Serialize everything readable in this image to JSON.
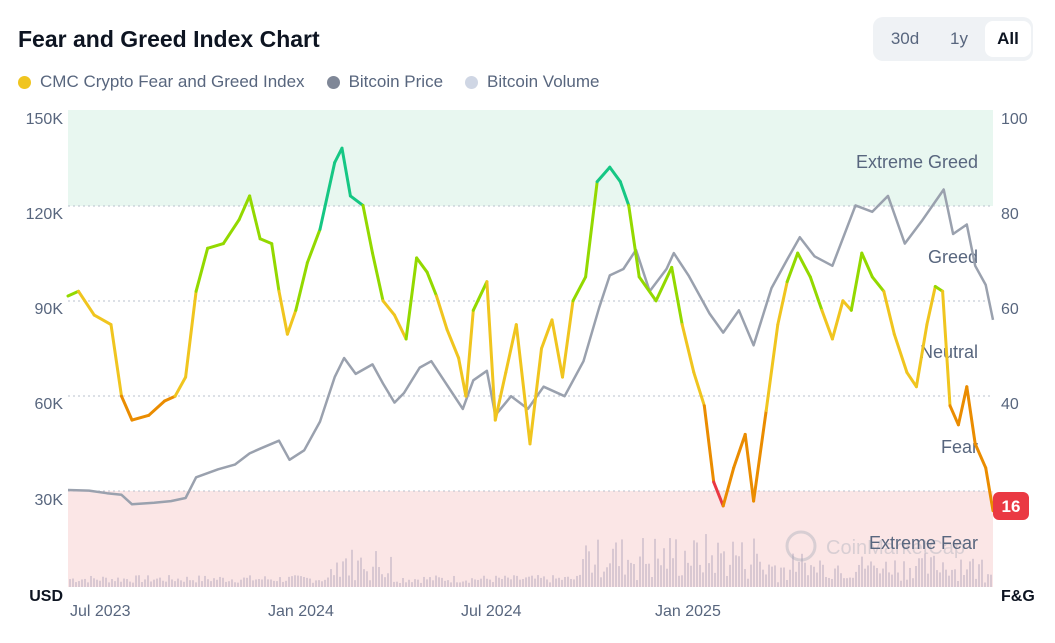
{
  "header": {
    "title": "Fear and Greed Index Chart"
  },
  "range_selector": {
    "options": [
      {
        "label": "30d",
        "active": false
      },
      {
        "label": "1y",
        "active": false
      },
      {
        "label": "All",
        "active": true
      }
    ]
  },
  "legend": [
    {
      "label": "CMC Crypto Fear and Greed Index",
      "color": "#f0c51f"
    },
    {
      "label": "Bitcoin Price",
      "color": "#7f8797"
    },
    {
      "label": "Bitcoin Volume",
      "color": "#cfd6e4"
    }
  ],
  "watermark": "CoinMarketCap",
  "current_badge": {
    "value": "16",
    "color": "#ea3943"
  },
  "chart_data": {
    "type": "line",
    "left_axis": {
      "label": "USD",
      "ticks": [
        "150K",
        "120K",
        "90K",
        "60K",
        "30K"
      ],
      "range": [
        0,
        150000
      ]
    },
    "right_axis": {
      "label": "F&G",
      "ticks": [
        "100",
        "80",
        "60",
        "40"
      ],
      "range": [
        0,
        100
      ]
    },
    "x_ticks": [
      "Jul 2023",
      "Jan 2024",
      "Jul 2024",
      "Jan 2025"
    ],
    "date_range": [
      "2023-06-25",
      "2025-11-22"
    ],
    "zones": [
      {
        "label": "Extreme Greed",
        "from": 80,
        "to": 100,
        "color": "#e8f7f0"
      },
      {
        "label": "Greed",
        "from": 60,
        "to": 80
      },
      {
        "label": "Neutral",
        "from": 40,
        "to": 60
      },
      {
        "label": "Fear",
        "from": 20,
        "to": 40
      },
      {
        "label": "Extreme Fear",
        "from": 0,
        "to": 20,
        "color": "#fbe6e6"
      }
    ],
    "series": [
      {
        "name": "CMC Crypto Fear and Greed Index",
        "axis": "right",
        "points": [
          [
            "2023-06-25",
            61
          ],
          [
            "2023-07-05",
            62
          ],
          [
            "2023-07-20",
            57
          ],
          [
            "2023-08-05",
            55
          ],
          [
            "2023-08-15",
            40
          ],
          [
            "2023-08-25",
            35
          ],
          [
            "2023-09-10",
            36
          ],
          [
            "2023-09-25",
            39
          ],
          [
            "2023-10-05",
            40
          ],
          [
            "2023-10-15",
            44
          ],
          [
            "2023-10-25",
            62
          ],
          [
            "2023-11-05",
            71
          ],
          [
            "2023-11-20",
            72
          ],
          [
            "2023-12-05",
            77
          ],
          [
            "2023-12-15",
            82
          ],
          [
            "2023-12-25",
            73
          ],
          [
            "2024-01-05",
            72
          ],
          [
            "2024-01-12",
            62
          ],
          [
            "2024-01-20",
            53
          ],
          [
            "2024-01-28",
            58
          ],
          [
            "2024-02-08",
            68
          ],
          [
            "2024-02-20",
            75
          ],
          [
            "2024-03-05",
            89
          ],
          [
            "2024-03-12",
            92
          ],
          [
            "2024-03-20",
            82
          ],
          [
            "2024-04-01",
            80
          ],
          [
            "2024-04-10",
            70
          ],
          [
            "2024-04-20",
            60
          ],
          [
            "2024-05-01",
            57
          ],
          [
            "2024-05-12",
            52
          ],
          [
            "2024-05-22",
            69
          ],
          [
            "2024-06-01",
            66
          ],
          [
            "2024-06-10",
            61
          ],
          [
            "2024-06-20",
            54
          ],
          [
            "2024-07-01",
            48
          ],
          [
            "2024-07-08",
            40
          ],
          [
            "2024-07-15",
            58
          ],
          [
            "2024-07-28",
            64
          ],
          [
            "2024-08-05",
            35
          ],
          [
            "2024-08-15",
            45
          ],
          [
            "2024-08-25",
            55
          ],
          [
            "2024-09-07",
            30
          ],
          [
            "2024-09-18",
            50
          ],
          [
            "2024-09-28",
            56
          ],
          [
            "2024-10-08",
            44
          ],
          [
            "2024-10-18",
            60
          ],
          [
            "2024-10-30",
            65
          ],
          [
            "2024-11-10",
            85
          ],
          [
            "2024-11-22",
            88
          ],
          [
            "2024-12-02",
            85
          ],
          [
            "2024-12-10",
            80
          ],
          [
            "2024-12-20",
            65
          ],
          [
            "2025-01-05",
            60
          ],
          [
            "2025-01-20",
            67
          ],
          [
            "2025-01-30",
            55
          ],
          [
            "2025-02-10",
            45
          ],
          [
            "2025-02-20",
            38
          ],
          [
            "2025-03-01",
            22
          ],
          [
            "2025-03-10",
            17
          ],
          [
            "2025-03-20",
            25
          ],
          [
            "2025-03-31",
            32
          ],
          [
            "2025-04-08",
            18
          ],
          [
            "2025-04-20",
            37
          ],
          [
            "2025-05-01",
            55
          ],
          [
            "2025-05-10",
            64
          ],
          [
            "2025-05-20",
            70
          ],
          [
            "2025-06-01",
            65
          ],
          [
            "2025-06-12",
            58
          ],
          [
            "2025-06-22",
            52
          ],
          [
            "2025-07-02",
            60
          ],
          [
            "2025-07-10",
            58
          ],
          [
            "2025-07-20",
            70
          ],
          [
            "2025-07-30",
            65
          ],
          [
            "2025-08-10",
            62
          ],
          [
            "2025-08-20",
            53
          ],
          [
            "2025-09-01",
            45
          ],
          [
            "2025-09-10",
            42
          ],
          [
            "2025-09-20",
            55
          ],
          [
            "2025-09-28",
            63
          ],
          [
            "2025-10-05",
            62
          ],
          [
            "2025-10-12",
            38
          ],
          [
            "2025-10-20",
            34
          ],
          [
            "2025-10-28",
            42
          ],
          [
            "2025-11-05",
            30
          ],
          [
            "2025-11-15",
            25
          ],
          [
            "2025-11-22",
            16
          ]
        ]
      },
      {
        "name": "Bitcoin Price",
        "axis": "left",
        "points": [
          [
            "2023-06-25",
            30500
          ],
          [
            "2023-07-15",
            30300
          ],
          [
            "2023-08-01",
            29500
          ],
          [
            "2023-08-15",
            29000
          ],
          [
            "2023-08-25",
            26000
          ],
          [
            "2023-09-15",
            26500
          ],
          [
            "2023-10-01",
            27000
          ],
          [
            "2023-10-15",
            28000
          ],
          [
            "2023-10-25",
            34500
          ],
          [
            "2023-11-15",
            37000
          ],
          [
            "2023-12-01",
            38500
          ],
          [
            "2023-12-15",
            42000
          ],
          [
            "2023-12-25",
            43500
          ],
          [
            "2024-01-12",
            46000
          ],
          [
            "2024-01-22",
            40000
          ],
          [
            "2024-02-05",
            43000
          ],
          [
            "2024-02-20",
            52000
          ],
          [
            "2024-03-05",
            66000
          ],
          [
            "2024-03-14",
            72000
          ],
          [
            "2024-03-25",
            67000
          ],
          [
            "2024-04-10",
            70000
          ],
          [
            "2024-04-20",
            64000
          ],
          [
            "2024-05-01",
            58000
          ],
          [
            "2024-05-10",
            61000
          ],
          [
            "2024-05-25",
            69000
          ],
          [
            "2024-06-05",
            71000
          ],
          [
            "2024-06-25",
            61000
          ],
          [
            "2024-07-05",
            56000
          ],
          [
            "2024-07-15",
            65000
          ],
          [
            "2024-07-28",
            68000
          ],
          [
            "2024-08-05",
            54000
          ],
          [
            "2024-08-20",
            60000
          ],
          [
            "2024-09-05",
            56000
          ],
          [
            "2024-09-20",
            63000
          ],
          [
            "2024-10-10",
            60000
          ],
          [
            "2024-10-28",
            71000
          ],
          [
            "2024-11-12",
            88000
          ],
          [
            "2024-11-22",
            98000
          ],
          [
            "2024-12-05",
            100000
          ],
          [
            "2024-12-17",
            106000
          ],
          [
            "2024-12-30",
            93000
          ],
          [
            "2025-01-15",
            100000
          ],
          [
            "2025-01-22",
            105000
          ],
          [
            "2025-02-05",
            98000
          ],
          [
            "2025-02-25",
            86000
          ],
          [
            "2025-03-10",
            80000
          ],
          [
            "2025-03-25",
            87000
          ],
          [
            "2025-04-08",
            76000
          ],
          [
            "2025-04-25",
            94000
          ],
          [
            "2025-05-10",
            103000
          ],
          [
            "2025-05-22",
            110000
          ],
          [
            "2025-06-05",
            104000
          ],
          [
            "2025-06-22",
            101000
          ],
          [
            "2025-07-14",
            120000
          ],
          [
            "2025-07-30",
            118000
          ],
          [
            "2025-08-14",
            123000
          ],
          [
            "2025-08-30",
            108000
          ],
          [
            "2025-09-15",
            115000
          ],
          [
            "2025-10-06",
            125000
          ],
          [
            "2025-10-15",
            111000
          ],
          [
            "2025-10-28",
            114000
          ],
          [
            "2025-11-05",
            101000
          ],
          [
            "2025-11-15",
            95000
          ],
          [
            "2025-11-22",
            84000
          ]
        ]
      },
      {
        "name": "Bitcoin Volume",
        "axis": "left",
        "note_values": "relative bars along bottom"
      }
    ]
  }
}
